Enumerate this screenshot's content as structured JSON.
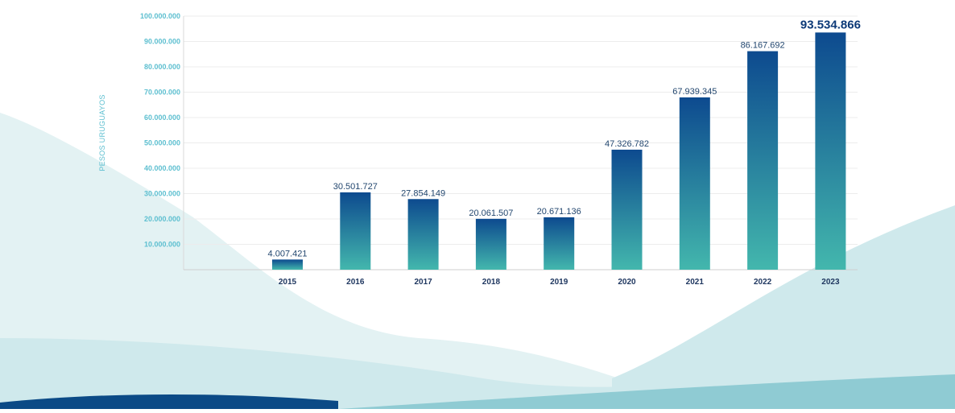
{
  "colors": {
    "bar_top": "#0d4a8f",
    "bar_bottom": "#43b7ad",
    "wave_light": "#e3f2f3",
    "wave_mid": "#cfe9ec",
    "wave_teal": "#8fcbd3",
    "wave_navy": "#0b4a86",
    "grid": "#ececec",
    "tick_text": "#5dbfd0"
  },
  "chart_data": {
    "type": "bar",
    "ylabel": "PESOS URUGUAYOS",
    "ylim": [
      0,
      100000000
    ],
    "y_ticks": [
      "10.000.000",
      "20.000.000",
      "30.000.000",
      "40.000.000",
      "50.000.000",
      "60.000.000",
      "70.000.000",
      "80.000.000",
      "90.000.000",
      "100.000.000"
    ],
    "categories": [
      "2015",
      "2016",
      "2017",
      "2018",
      "2019",
      "2020",
      "2021",
      "2022",
      "2023"
    ],
    "values": [
      4007421,
      30501727,
      27854149,
      20061507,
      20671136,
      47326782,
      67939345,
      86167692,
      93534866
    ],
    "value_labels": [
      "4.007.421",
      "30.501.727",
      "27.854.149",
      "20.061.507",
      "20.671.136",
      "47.326.782",
      "67.939.345",
      "86.167.692",
      "93.534.866"
    ],
    "highlight_last": true,
    "grid": true
  }
}
